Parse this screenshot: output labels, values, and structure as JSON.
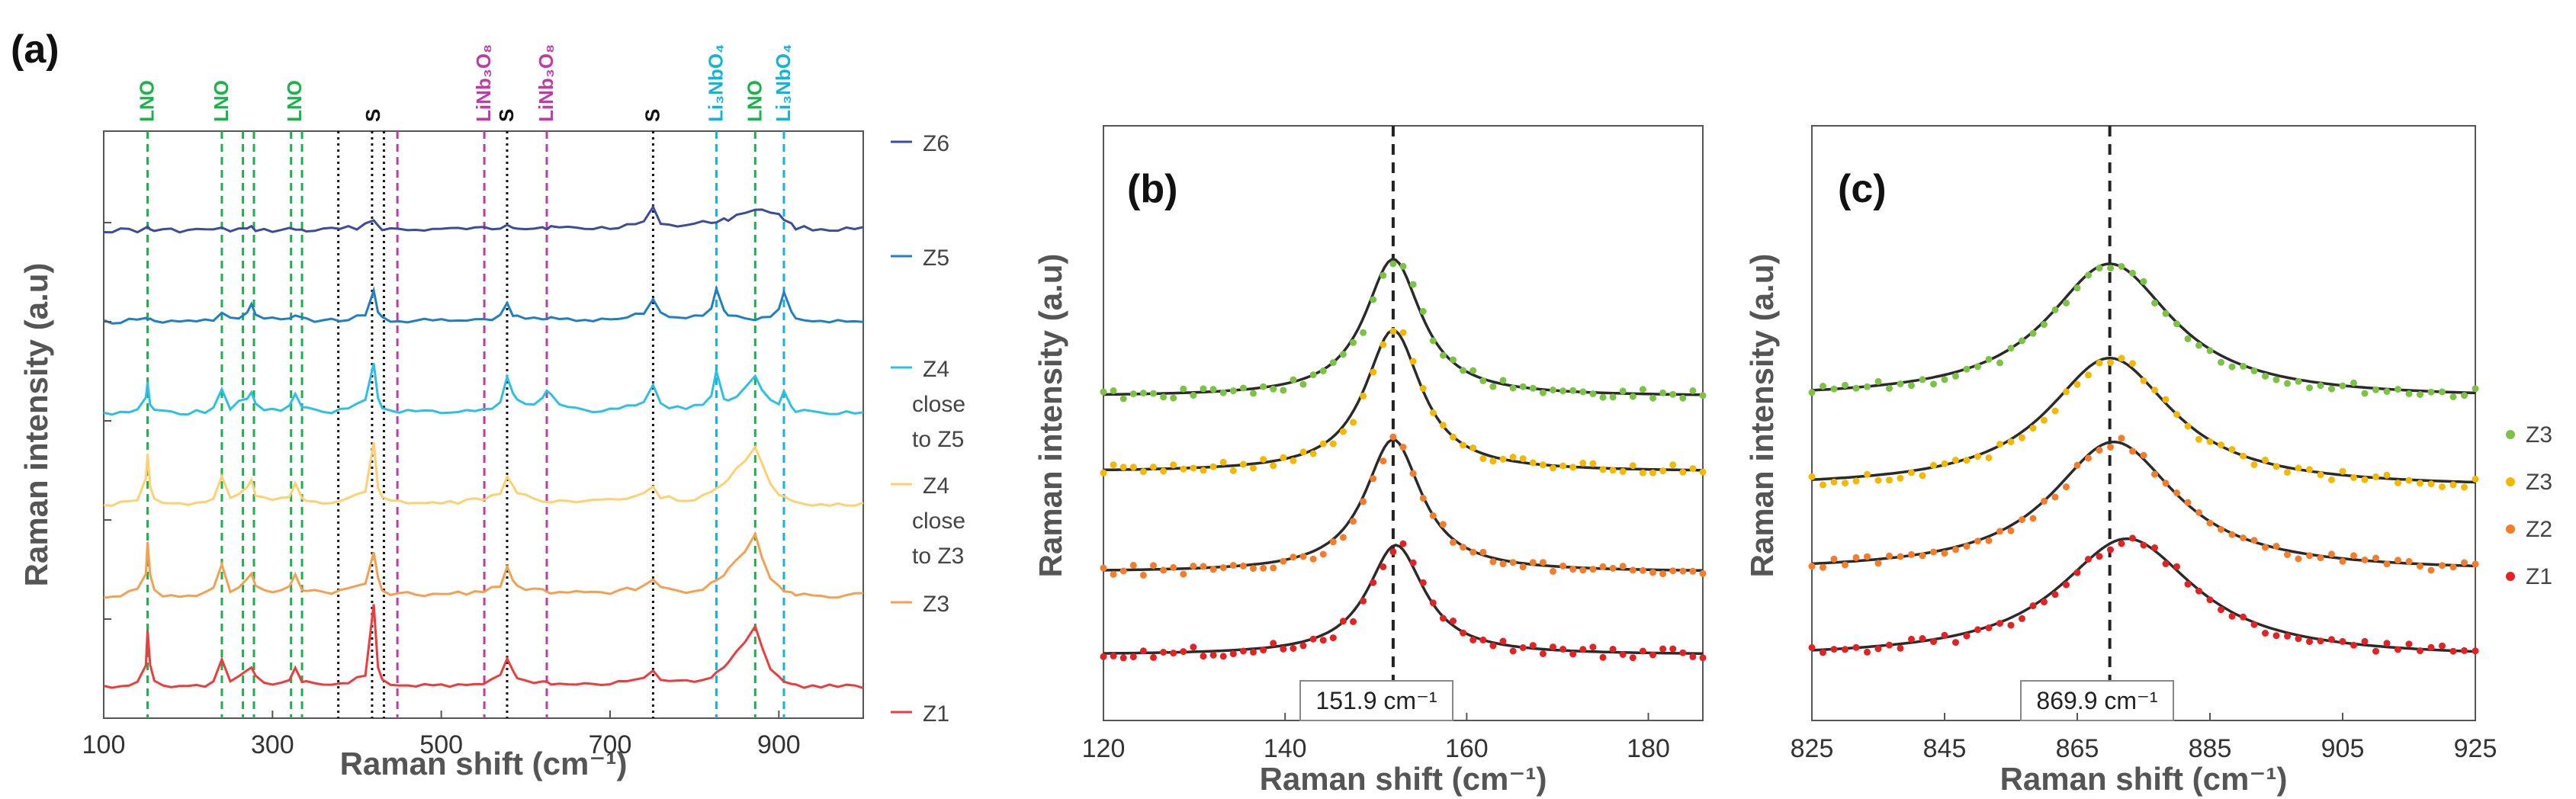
{
  "figure": {
    "panel_a": {
      "label": "(a)",
      "xlabel": "Raman shift (cm⁻¹)",
      "ylabel": "Raman intensity (a.u)",
      "peak_labels": [
        {
          "text": "LNO",
          "x": 152,
          "color": "#19b34a"
        },
        {
          "text": "LNO",
          "x": 240,
          "color": "#19b34a"
        },
        {
          "text": "LNO",
          "x": 327,
          "color": "#19b34a"
        },
        {
          "text": "S",
          "x": 420,
          "color": "#111111"
        },
        {
          "text": "LiNb₃O₈",
          "x": 551,
          "color": "#c03aa8"
        },
        {
          "text": "S",
          "x": 578,
          "color": "#111111"
        },
        {
          "text": "LiNb₃O₈",
          "x": 625,
          "color": "#c03aa8"
        },
        {
          "text": "S",
          "x": 751,
          "color": "#111111"
        },
        {
          "text": "Li₃NbO₄",
          "x": 826,
          "color": "#13b4d8"
        },
        {
          "text": "LNO",
          "x": 872,
          "color": "#19b34a"
        },
        {
          "text": "Li₃NbO₄",
          "x": 906,
          "color": "#13b4d8"
        }
      ],
      "legend": [
        {
          "lines": [
            "Z6"
          ],
          "color": "#3b4b9e"
        },
        {
          "lines": [
            "Z5"
          ],
          "color": "#1f7fc4"
        },
        {
          "lines": [
            "Z4",
            "close",
            "to Z5"
          ],
          "color": "#2cc0e6"
        },
        {
          "lines": [
            "Z4",
            "close",
            "to Z3"
          ],
          "color": "#ffd070"
        },
        {
          "lines": [
            "Z3"
          ],
          "color": "#f5a050"
        },
        {
          "lines": [
            "Z1"
          ],
          "color": "#ee3b3b"
        }
      ]
    },
    "panel_b": {
      "label": "(b)",
      "xlabel": "Raman shift (cm⁻¹)",
      "ylabel": "Raman intensity (a.u)",
      "annotation": "151.9 cm⁻¹"
    },
    "panel_c": {
      "label": "(c)",
      "xlabel": "Raman shift (cm⁻¹)",
      "ylabel": "Raman intensity (a.u)",
      "annotation": "869.9 cm⁻¹",
      "legend": [
        {
          "label": "Z3",
          "color": "#7cc243"
        },
        {
          "label": "Z3",
          "color": "#f5b800"
        },
        {
          "label": "Z2",
          "color": "#f57c28"
        },
        {
          "label": "Z1",
          "color": "#e52222"
        }
      ]
    }
  },
  "chart_data": [
    {
      "type": "line",
      "title": "(a)",
      "xlabel": "Raman shift (cm⁻¹)",
      "ylabel": "Raman intensity (a.u)",
      "xlim": [
        100,
        1000
      ],
      "xticks": [
        100,
        300,
        500,
        700,
        900
      ],
      "x": [
        100,
        110,
        120,
        130,
        140,
        150,
        152,
        155,
        160,
        170,
        180,
        190,
        200,
        210,
        220,
        230,
        240,
        250,
        260,
        270,
        275,
        280,
        290,
        300,
        310,
        320,
        327,
        335,
        340,
        350,
        360,
        370,
        380,
        390,
        400,
        410,
        420,
        425,
        430,
        440,
        450,
        460,
        470,
        480,
        490,
        500,
        510,
        520,
        530,
        540,
        550,
        560,
        570,
        578,
        585,
        590,
        600,
        610,
        620,
        625,
        630,
        640,
        650,
        660,
        670,
        680,
        690,
        700,
        710,
        720,
        730,
        740,
        751,
        760,
        770,
        780,
        790,
        800,
        810,
        820,
        826,
        835,
        840,
        850,
        860,
        872,
        880,
        890,
        900,
        906,
        915,
        920,
        930,
        940,
        950,
        960,
        970,
        980,
        990,
        1000
      ],
      "series": [
        {
          "name": "Z6",
          "color": "#3b4b9e",
          "values": [
            0.02,
            0.02,
            0.02,
            0.03,
            0.02,
            0.03,
            0.05,
            0.03,
            0.02,
            0.02,
            0.02,
            0.02,
            0.02,
            0.02,
            0.03,
            0.02,
            0.03,
            0.02,
            0.03,
            0.03,
            0.04,
            0.03,
            0.02,
            0.02,
            0.02,
            0.03,
            0.03,
            0.02,
            0.02,
            0.02,
            0.02,
            0.03,
            0.03,
            0.04,
            0.05,
            0.08,
            0.12,
            0.07,
            0.04,
            0.03,
            0.03,
            0.02,
            0.02,
            0.03,
            0.03,
            0.03,
            0.03,
            0.03,
            0.04,
            0.03,
            0.04,
            0.04,
            0.05,
            0.09,
            0.06,
            0.05,
            0.04,
            0.04,
            0.05,
            0.05,
            0.05,
            0.04,
            0.04,
            0.04,
            0.04,
            0.04,
            0.04,
            0.05,
            0.06,
            0.07,
            0.08,
            0.1,
            0.22,
            0.1,
            0.07,
            0.07,
            0.07,
            0.08,
            0.09,
            0.1,
            0.11,
            0.12,
            0.13,
            0.15,
            0.19,
            0.22,
            0.22,
            0.2,
            0.16,
            0.13,
            0.07,
            0.05,
            0.04,
            0.04,
            0.03,
            0.03,
            0.03,
            0.03,
            0.03,
            0.03
          ]
        },
        {
          "name": "Z5",
          "color": "#1f7fc4",
          "values": [
            0.02,
            0.02,
            0.02,
            0.03,
            0.03,
            0.04,
            0.05,
            0.04,
            0.03,
            0.02,
            0.02,
            0.02,
            0.02,
            0.03,
            0.03,
            0.04,
            0.12,
            0.05,
            0.06,
            0.1,
            0.17,
            0.09,
            0.05,
            0.04,
            0.05,
            0.06,
            0.08,
            0.06,
            0.05,
            0.04,
            0.03,
            0.03,
            0.04,
            0.05,
            0.06,
            0.08,
            0.3,
            0.12,
            0.06,
            0.04,
            0.03,
            0.03,
            0.03,
            0.03,
            0.03,
            0.03,
            0.03,
            0.03,
            0.03,
            0.04,
            0.04,
            0.05,
            0.07,
            0.2,
            0.08,
            0.06,
            0.05,
            0.05,
            0.05,
            0.05,
            0.05,
            0.04,
            0.04,
            0.04,
            0.04,
            0.04,
            0.05,
            0.05,
            0.06,
            0.07,
            0.08,
            0.1,
            0.25,
            0.1,
            0.07,
            0.06,
            0.06,
            0.07,
            0.09,
            0.15,
            0.35,
            0.12,
            0.08,
            0.06,
            0.05,
            0.05,
            0.05,
            0.07,
            0.12,
            0.3,
            0.1,
            0.05,
            0.04,
            0.03,
            0.03,
            0.03,
            0.03,
            0.03,
            0.03,
            0.03
          ]
        },
        {
          "name": "Z4 close to Z5",
          "color": "#2cc0e6",
          "values": [
            0.02,
            0.02,
            0.03,
            0.04,
            0.06,
            0.15,
            0.3,
            0.12,
            0.05,
            0.03,
            0.03,
            0.03,
            0.03,
            0.03,
            0.04,
            0.06,
            0.25,
            0.07,
            0.12,
            0.15,
            0.2,
            0.1,
            0.06,
            0.05,
            0.06,
            0.08,
            0.2,
            0.08,
            0.06,
            0.05,
            0.04,
            0.04,
            0.05,
            0.07,
            0.09,
            0.15,
            0.5,
            0.18,
            0.08,
            0.05,
            0.04,
            0.04,
            0.04,
            0.04,
            0.04,
            0.04,
            0.04,
            0.04,
            0.04,
            0.05,
            0.06,
            0.08,
            0.12,
            0.35,
            0.2,
            0.14,
            0.1,
            0.12,
            0.18,
            0.22,
            0.18,
            0.1,
            0.07,
            0.06,
            0.05,
            0.05,
            0.05,
            0.06,
            0.07,
            0.08,
            0.1,
            0.14,
            0.3,
            0.12,
            0.08,
            0.07,
            0.07,
            0.08,
            0.1,
            0.18,
            0.4,
            0.15,
            0.12,
            0.16,
            0.25,
            0.35,
            0.25,
            0.14,
            0.12,
            0.22,
            0.07,
            0.05,
            0.04,
            0.03,
            0.03,
            0.03,
            0.03,
            0.03,
            0.03,
            0.03
          ]
        },
        {
          "name": "Z4 close to Z3",
          "color": "#ffd070",
          "values": [
            0.02,
            0.02,
            0.03,
            0.05,
            0.08,
            0.25,
            0.5,
            0.2,
            0.07,
            0.04,
            0.03,
            0.03,
            0.03,
            0.04,
            0.05,
            0.08,
            0.28,
            0.08,
            0.12,
            0.18,
            0.24,
            0.12,
            0.07,
            0.06,
            0.07,
            0.1,
            0.22,
            0.09,
            0.07,
            0.06,
            0.05,
            0.05,
            0.06,
            0.08,
            0.1,
            0.15,
            0.6,
            0.2,
            0.08,
            0.05,
            0.04,
            0.04,
            0.04,
            0.04,
            0.04,
            0.04,
            0.04,
            0.05,
            0.05,
            0.06,
            0.07,
            0.09,
            0.13,
            0.3,
            0.18,
            0.13,
            0.1,
            0.08,
            0.07,
            0.06,
            0.06,
            0.06,
            0.05,
            0.05,
            0.05,
            0.05,
            0.05,
            0.06,
            0.07,
            0.08,
            0.09,
            0.11,
            0.2,
            0.1,
            0.08,
            0.07,
            0.07,
            0.08,
            0.1,
            0.13,
            0.16,
            0.22,
            0.26,
            0.35,
            0.45,
            0.55,
            0.4,
            0.2,
            0.12,
            0.08,
            0.05,
            0.04,
            0.04,
            0.03,
            0.03,
            0.03,
            0.03,
            0.03,
            0.03,
            0.03
          ]
        },
        {
          "name": "Z3",
          "color": "#f5a050",
          "values": [
            0.02,
            0.02,
            0.03,
            0.05,
            0.08,
            0.25,
            0.55,
            0.22,
            0.07,
            0.04,
            0.03,
            0.03,
            0.03,
            0.04,
            0.05,
            0.08,
            0.3,
            0.08,
            0.12,
            0.18,
            0.22,
            0.12,
            0.07,
            0.06,
            0.07,
            0.1,
            0.22,
            0.09,
            0.07,
            0.06,
            0.05,
            0.05,
            0.06,
            0.08,
            0.1,
            0.15,
            0.45,
            0.18,
            0.08,
            0.05,
            0.04,
            0.04,
            0.04,
            0.04,
            0.04,
            0.04,
            0.04,
            0.05,
            0.05,
            0.06,
            0.07,
            0.09,
            0.13,
            0.3,
            0.18,
            0.13,
            0.1,
            0.08,
            0.07,
            0.06,
            0.06,
            0.06,
            0.05,
            0.05,
            0.05,
            0.05,
            0.05,
            0.06,
            0.07,
            0.08,
            0.09,
            0.11,
            0.18,
            0.1,
            0.08,
            0.07,
            0.07,
            0.08,
            0.1,
            0.13,
            0.16,
            0.22,
            0.26,
            0.35,
            0.45,
            0.6,
            0.4,
            0.2,
            0.12,
            0.08,
            0.05,
            0.04,
            0.04,
            0.03,
            0.03,
            0.03,
            0.03,
            0.03,
            0.03,
            0.03
          ]
        },
        {
          "name": "Z1",
          "color": "#ee3b3b",
          "values": [
            0.02,
            0.02,
            0.03,
            0.05,
            0.08,
            0.25,
            0.55,
            0.22,
            0.07,
            0.04,
            0.03,
            0.03,
            0.03,
            0.04,
            0.05,
            0.08,
            0.3,
            0.08,
            0.12,
            0.18,
            0.2,
            0.12,
            0.07,
            0.06,
            0.07,
            0.1,
            0.2,
            0.09,
            0.07,
            0.06,
            0.05,
            0.05,
            0.06,
            0.08,
            0.1,
            0.15,
            0.8,
            0.2,
            0.08,
            0.05,
            0.04,
            0.04,
            0.04,
            0.04,
            0.04,
            0.04,
            0.04,
            0.05,
            0.05,
            0.06,
            0.07,
            0.09,
            0.13,
            0.28,
            0.18,
            0.13,
            0.1,
            0.08,
            0.07,
            0.06,
            0.06,
            0.06,
            0.05,
            0.05,
            0.05,
            0.05,
            0.05,
            0.06,
            0.07,
            0.08,
            0.09,
            0.11,
            0.18,
            0.1,
            0.08,
            0.07,
            0.07,
            0.08,
            0.1,
            0.13,
            0.16,
            0.22,
            0.26,
            0.35,
            0.45,
            0.6,
            0.4,
            0.2,
            0.12,
            0.08,
            0.05,
            0.04,
            0.04,
            0.03,
            0.03,
            0.03,
            0.03,
            0.03,
            0.03,
            0.03
          ]
        }
      ],
      "series_offsets": [
        5,
        4,
        3,
        2,
        1,
        0
      ],
      "reference_lines": [
        {
          "x": 152,
          "color": "#19b34a",
          "style": "dashed"
        },
        {
          "x": 240,
          "color": "#19b34a",
          "style": "dashed"
        },
        {
          "x": 265,
          "color": "#19b34a",
          "style": "dashed"
        },
        {
          "x": 278,
          "color": "#19b34a",
          "style": "dashed"
        },
        {
          "x": 322,
          "color": "#19b34a",
          "style": "dashed"
        },
        {
          "x": 335,
          "color": "#19b34a",
          "style": "dashed"
        },
        {
          "x": 378,
          "color": "#111111",
          "style": "dotted"
        },
        {
          "x": 418,
          "color": "#111111",
          "style": "dotted"
        },
        {
          "x": 432,
          "color": "#111111",
          "style": "dotted"
        },
        {
          "x": 448,
          "color": "#c03aa8",
          "style": "dashed"
        },
        {
          "x": 551,
          "color": "#c03aa8",
          "style": "dashed"
        },
        {
          "x": 578,
          "color": "#111111",
          "style": "dotted"
        },
        {
          "x": 625,
          "color": "#c03aa8",
          "style": "dashed"
        },
        {
          "x": 751,
          "color": "#111111",
          "style": "dotted"
        },
        {
          "x": 826,
          "color": "#13b4d8",
          "style": "dashed"
        },
        {
          "x": 872,
          "color": "#19b34a",
          "style": "dashed"
        },
        {
          "x": 906,
          "color": "#13b4d8",
          "style": "dashed"
        }
      ]
    },
    {
      "type": "scatter",
      "title": "(b)",
      "xlabel": "Raman shift (cm⁻¹)",
      "ylabel": "Raman intensity (a.u)",
      "xlim": [
        120,
        186
      ],
      "xticks": [
        120,
        140,
        160,
        180
      ],
      "peak_center": 151.9,
      "series": [
        {
          "name": "Z3",
          "color": "#7cc243",
          "center": 151.9,
          "width": 3.8,
          "base": 0.4,
          "amp": 3.0,
          "offset": 3.0
        },
        {
          "name": "Z3",
          "color": "#f5b800",
          "center": 151.9,
          "width": 3.8,
          "base": 0.55,
          "amp": 3.1,
          "offset": 2.0
        },
        {
          "name": "Z2",
          "color": "#f57c28",
          "center": 151.9,
          "width": 3.8,
          "base": 0.25,
          "amp": 2.9,
          "offset": 0.95
        },
        {
          "name": "Z1",
          "color": "#e52222",
          "center": 152.2,
          "width": 3.8,
          "base": 0.15,
          "amp": 2.4,
          "offset": 0.0
        }
      ]
    },
    {
      "type": "scatter",
      "title": "(c)",
      "xlabel": "Raman shift (cm⁻¹)",
      "ylabel": "Raman intensity (a.u)",
      "xlim": [
        825,
        925
      ],
      "xticks": [
        825,
        845,
        865,
        885,
        905,
        925
      ],
      "peak_center": 869.9,
      "series": [
        {
          "name": "Z3",
          "color": "#7cc243",
          "center": 869.9,
          "width": 11.5,
          "base": 0.4,
          "amp": 2.6,
          "offset": 3.0
        },
        {
          "name": "Z3",
          "color": "#f5b800",
          "center": 869.9,
          "width": 11.5,
          "base": 0.3,
          "amp": 2.5,
          "offset": 2.0
        },
        {
          "name": "Z2",
          "color": "#f57c28",
          "center": 870.5,
          "width": 11.5,
          "base": 0.3,
          "amp": 2.5,
          "offset": 1.0
        },
        {
          "name": "Z1",
          "color": "#e52222",
          "center": 872.5,
          "width": 12.5,
          "base": 0.25,
          "amp": 2.3,
          "offset": 0.0
        }
      ]
    }
  ]
}
